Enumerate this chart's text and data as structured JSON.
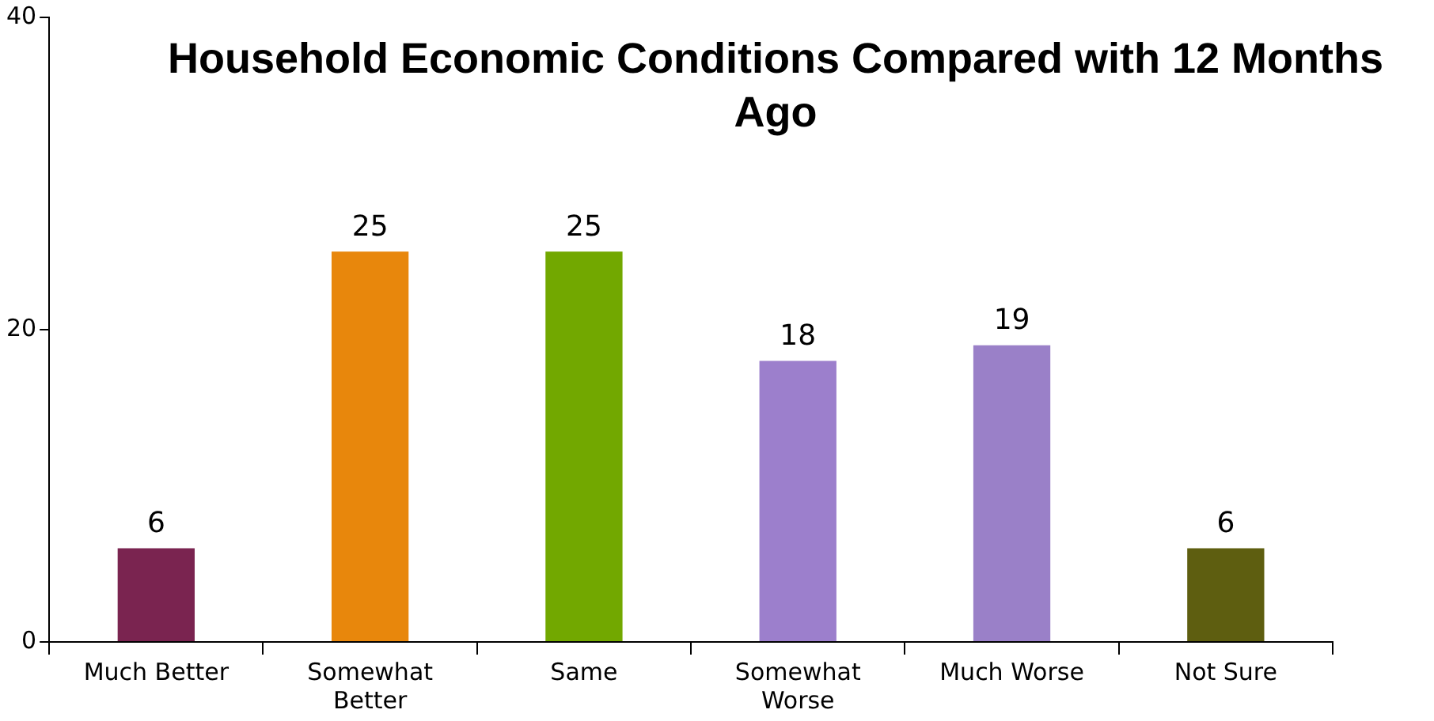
{
  "chart_data": {
    "type": "bar",
    "title": "Household Economic Conditions Compared with 12 Months Ago",
    "categories": [
      "Much Better",
      "Somewhat Better",
      "Same",
      "Somewhat Worse",
      "Much Worse",
      "Not Sure"
    ],
    "values": [
      6,
      25,
      25,
      18,
      19,
      6
    ],
    "colors": [
      "#7a2450",
      "#e8870c",
      "#72a800",
      "#9c7fcc",
      "#9a80c8",
      "#5e5e10"
    ],
    "ylim": [
      0,
      40
    ],
    "yticks": [
      0,
      20,
      40
    ],
    "grid": false,
    "legend": false,
    "data_labels": true
  }
}
